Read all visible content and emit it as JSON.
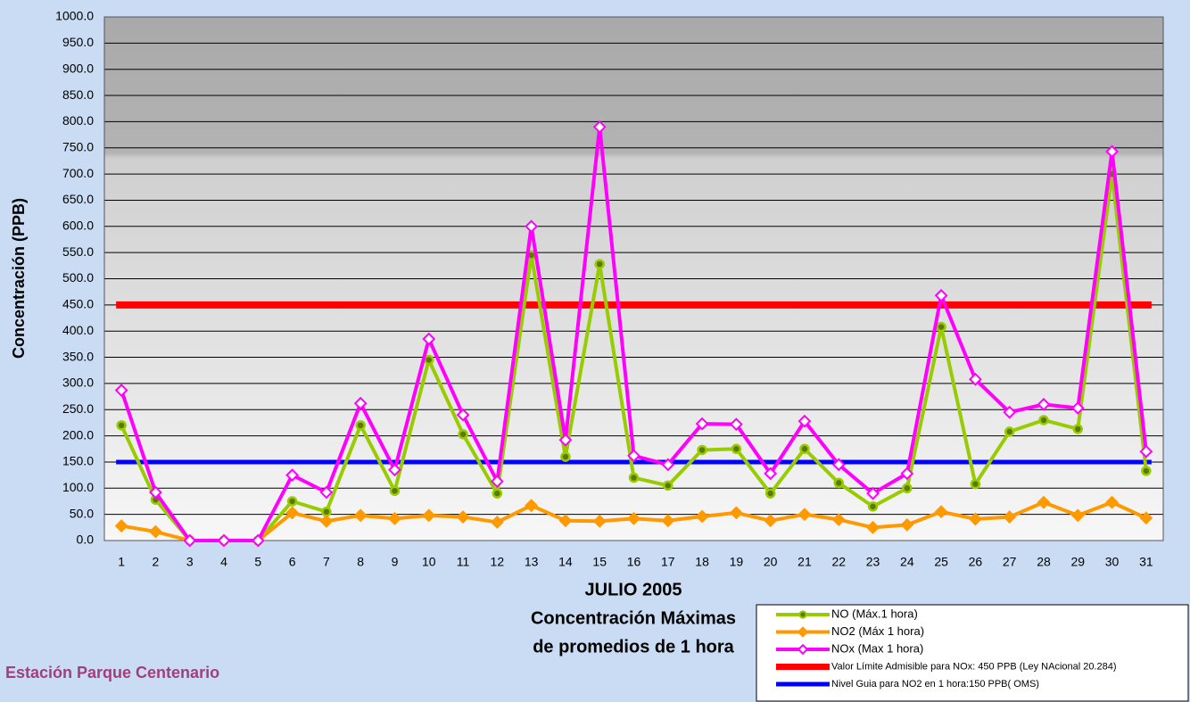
{
  "chart_data": {
    "type": "line",
    "categories": [
      "1",
      "2",
      "3",
      "4",
      "5",
      "6",
      "7",
      "8",
      "9",
      "10",
      "11",
      "12",
      "13",
      "14",
      "15",
      "16",
      "17",
      "18",
      "19",
      "20",
      "21",
      "22",
      "23",
      "24",
      "25",
      "26",
      "27",
      "28",
      "29",
      "30",
      "31"
    ],
    "series": [
      {
        "name": "NO (Máx.1 hora)",
        "color": "#99cc00",
        "marker": "circle",
        "values": [
          220,
          78,
          0,
          0,
          0,
          75,
          55,
          220,
          95,
          345,
          203,
          90,
          545,
          160,
          528,
          120,
          105,
          173,
          175,
          90,
          175,
          110,
          65,
          100,
          408,
          108,
          208,
          230,
          213,
          700,
          133
        ]
      },
      {
        "name": "NO2 (Máx 1 hora)",
        "color": "#ff9900",
        "marker": "diamond",
        "values": [
          28,
          17,
          0,
          0,
          0,
          53,
          37,
          48,
          42,
          48,
          45,
          35,
          67,
          38,
          37,
          42,
          38,
          46,
          53,
          38,
          50,
          40,
          25,
          30,
          55,
          41,
          45,
          73,
          48,
          73,
          43
        ]
      },
      {
        "name": "NOx (Max 1 hora)",
        "color": "#ff00ff",
        "marker": "open-diamond",
        "values": [
          287,
          92,
          0,
          0,
          0,
          125,
          92,
          262,
          135,
          385,
          240,
          113,
          600,
          192,
          790,
          162,
          145,
          223,
          222,
          128,
          228,
          145,
          90,
          128,
          468,
          308,
          245,
          260,
          253,
          743,
          170
        ]
      }
    ],
    "reference_lines": [
      {
        "name": "Valor Límite Admisible para NOx: 450 PPB (Ley NAcional 20.284)",
        "color": "#ff0000",
        "value": 450
      },
      {
        "name": "Nivel Guia para NO2 en 1 hora:150 PPB( OMS)",
        "color": "#0000ff",
        "value": 150
      }
    ],
    "ylim": [
      0,
      1000
    ],
    "yticks": [
      {
        "value": 0,
        "label": "0.0"
      },
      {
        "value": 50,
        "label": "50.0"
      },
      {
        "value": 100,
        "label": "100.0"
      },
      {
        "value": 150,
        "label": "150.0"
      },
      {
        "value": 200,
        "label": "200.0"
      },
      {
        "value": 250,
        "label": "250.0"
      },
      {
        "value": 300,
        "label": "300.0"
      },
      {
        "value": 350,
        "label": "350.0"
      },
      {
        "value": 400,
        "label": "400.0"
      },
      {
        "value": 450,
        "label": "450.0"
      },
      {
        "value": 500,
        "label": "500.0"
      },
      {
        "value": 550,
        "label": "550.0"
      },
      {
        "value": 600,
        "label": "600.0"
      },
      {
        "value": 650,
        "label": "650.0"
      },
      {
        "value": 700,
        "label": "700.0"
      },
      {
        "value": 750,
        "label": "750.0"
      },
      {
        "value": 800,
        "label": "800.0"
      },
      {
        "value": 850,
        "label": "850.0"
      },
      {
        "value": 900,
        "label": "900.0"
      },
      {
        "value": 950,
        "label": "950.0"
      },
      {
        "value": 1000,
        "label": "1000.0"
      }
    ],
    "grid": true,
    "y_label": "Concentración   (PPB)",
    "x_title": [
      "JULIO 2005",
      "Concentración Máximas",
      "de promedios de 1 hora"
    ],
    "station": "Estación Parque Centenario"
  }
}
